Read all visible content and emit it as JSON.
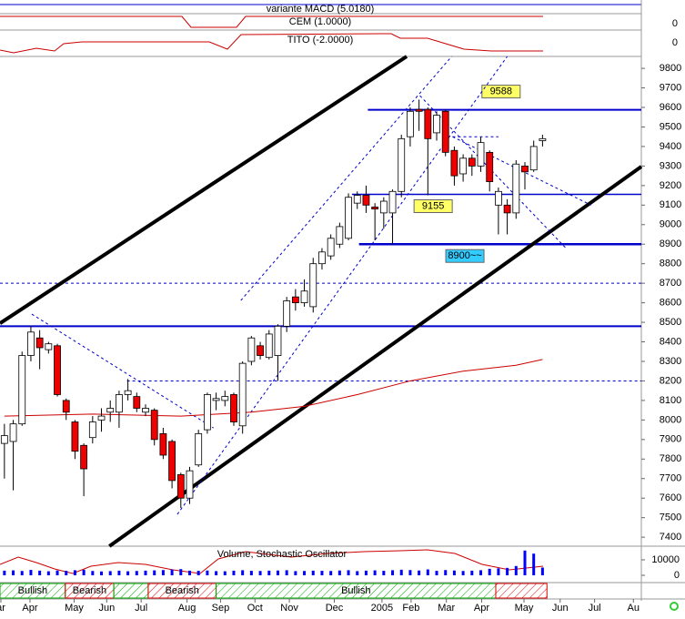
{
  "chart_data": {
    "type": "candlestick",
    "panels": [
      "variante MACD (5.0180)",
      "CEM (1.0000)",
      "TITO (-2.0000)"
    ],
    "panel_ticks": [
      "0",
      "0"
    ],
    "x": [
      0,
      1,
      2,
      3,
      4,
      5,
      6,
      7,
      8,
      9,
      10,
      11,
      12,
      13,
      14,
      15,
      16,
      17,
      18,
      19,
      20,
      21,
      22,
      23,
      24,
      25,
      26,
      27,
      28,
      29,
      30,
      31,
      32,
      33,
      34,
      35,
      36,
      37,
      38,
      39,
      40,
      41,
      42,
      43,
      44,
      45,
      46,
      47,
      48,
      49,
      50,
      51,
      52,
      53,
      54,
      55,
      56,
      57,
      58,
      59,
      60,
      61
    ],
    "open": [
      7880,
      7890,
      7980,
      8330,
      8420,
      8360,
      8380,
      8100,
      7990,
      7870,
      7910,
      8000,
      8040,
      8040,
      8130,
      8120,
      8040,
      8050,
      7930,
      7890,
      7720,
      7600,
      7770,
      7950,
      8100,
      8100,
      8130,
      7970,
      8300,
      8380,
      8320,
      8330,
      8480,
      8630,
      8600,
      8580,
      8800,
      8840,
      8900,
      8930,
      9110,
      9150,
      9090,
      9060,
      9060,
      9170,
      9450,
      9590,
      9590,
      9470,
      9580,
      9380,
      9260,
      9340,
      9300,
      9370,
      9100,
      9100,
      9060,
      9300,
      9280,
      9430
    ],
    "high": [
      7980,
      8000,
      8350,
      8480,
      8460,
      8400,
      8390,
      8110,
      8000,
      7880,
      8020,
      8060,
      8100,
      8150,
      8210,
      8140,
      8080,
      8060,
      7960,
      7900,
      7730,
      7760,
      7950,
      8140,
      8140,
      8150,
      8140,
      8300,
      8430,
      8400,
      8460,
      8490,
      8630,
      8670,
      8720,
      8830,
      8880,
      8950,
      9010,
      9160,
      9170,
      9200,
      9110,
      9140,
      9180,
      9460,
      9600,
      9640,
      9600,
      9580,
      9590,
      9400,
      9360,
      9360,
      9450,
      9380,
      9190,
      9130,
      9330,
      9320,
      9430,
      9460
    ],
    "low": [
      7700,
      7640,
      7970,
      8300,
      8260,
      8340,
      8120,
      8000,
      7800,
      7610,
      7880,
      7940,
      7990,
      7960,
      8100,
      8040,
      8020,
      7870,
      7800,
      7650,
      7550,
      7570,
      7760,
      7930,
      8050,
      8070,
      7970,
      7930,
      8280,
      8310,
      8310,
      8200,
      8450,
      8560,
      8580,
      8550,
      8770,
      8820,
      8880,
      8920,
      9080,
      9060,
      8920,
      8980,
      8900,
      9140,
      9400,
      9480,
      9150,
      9430,
      9350,
      9200,
      9220,
      9250,
      9270,
      9170,
      8950,
      8950,
      9030,
      9180,
      9270,
      9400
    ],
    "close": [
      7920,
      7980,
      8330,
      8450,
      8370,
      8390,
      8130,
      8040,
      7840,
      7750,
      7990,
      8020,
      8060,
      8130,
      8150,
      8060,
      8060,
      7900,
      7820,
      7690,
      7600,
      7740,
      7930,
      8130,
      8110,
      8120,
      7990,
      8290,
      8420,
      8330,
      8440,
      8480,
      8610,
      8600,
      8660,
      8800,
      8860,
      8930,
      8990,
      9140,
      9150,
      9100,
      9080,
      9120,
      9170,
      9440,
      9580,
      9580,
      9440,
      9560,
      9370,
      9250,
      9340,
      9300,
      9420,
      9220,
      9170,
      9060,
      9310,
      9270,
      9400,
      9440
    ],
    "volume": [
      3000,
      3200,
      2800,
      3500,
      3000,
      2600,
      3100,
      2900,
      3300,
      3600,
      2800,
      2500,
      2700,
      3000,
      2600,
      2800,
      3000,
      3200,
      3400,
      3800,
      4000,
      3000,
      2900,
      3100,
      2700,
      2600,
      3000,
      3300,
      2900,
      2800,
      3000,
      3100,
      3300,
      2700,
      2800,
      3000,
      2900,
      2800,
      3100,
      3300,
      2700,
      3000,
      3200,
      2900,
      3300,
      3600,
      3400,
      3100,
      3800,
      2900,
      3400,
      3100,
      2800,
      3000,
      3300,
      4200,
      4500,
      4800,
      6000,
      16000,
      14000,
      5000
    ],
    "moving_average": {
      "x": [
        0,
        10,
        20,
        28,
        34,
        40,
        46,
        52,
        58,
        61
      ],
      "values": [
        8020,
        8030,
        8020,
        8040,
        8070,
        8130,
        8200,
        8250,
        8280,
        8310
      ],
      "color": "#cc0000"
    },
    "levels": [
      {
        "value": 9588,
        "label": "9588",
        "from": 41.2,
        "color": "#0000cc",
        "width": 2,
        "dashed": false,
        "label_x": 56.3,
        "label_bg": "#ffff66"
      },
      {
        "value": 9155,
        "label": "9155",
        "from": 39.4,
        "color": "#0000cc",
        "width": 1.5,
        "dashed": false,
        "label_x": 48.6,
        "label_bg": "#ffff66"
      },
      {
        "value": 8900,
        "label": "8900~~",
        "from": 40.2,
        "color": "#0000cc",
        "width": 2.5,
        "dashed": false,
        "label_x": 52.2,
        "label_bg": "#33ccff"
      },
      {
        "value": 8480,
        "label": null,
        "from": -0.5,
        "color": "#0000cc",
        "width": 2,
        "dashed": false
      },
      {
        "value": 8700,
        "label": null,
        "from": -0.5,
        "color": "#0000cc",
        "width": 1,
        "dashed": true
      },
      {
        "value": 8200,
        "label": null,
        "from": 13.9,
        "color": "#0000cc",
        "width": 1,
        "dashed": true
      }
    ],
    "trendlines": [
      {
        "x": [
          -0.5,
          45.6
        ],
        "y": [
          8495,
          9861
        ],
        "color": "#000000",
        "width": 4,
        "dashed": false
      },
      {
        "x": [
          11.9,
          72.2
        ],
        "y": [
          7354,
          9297
        ],
        "color": "#000000",
        "width": 4,
        "dashed": false
      },
      {
        "x": [
          26.8,
          50.7
        ],
        "y": [
          8612,
          9861
        ],
        "color": "#0000cc",
        "width": 1,
        "dashed": true
      },
      {
        "x": [
          19.6,
          57.0
        ],
        "y": [
          7517,
          9861
        ],
        "color": "#0000cc",
        "width": 1,
        "dashed": true
      },
      {
        "x": [
          3.1,
          23.7
        ],
        "y": [
          8542,
          7959
        ],
        "color": "#0000cc",
        "width": 1,
        "dashed": true
      },
      {
        "x": [
          47.1,
          63.6
        ],
        "y": [
          9660,
          8882
        ],
        "color": "#0000cc",
        "width": 1,
        "dashed": true
      },
      {
        "x": [
          50.8,
          66.5
        ],
        "y": [
          9450,
          9100
        ],
        "color": "#0000cc",
        "width": 1,
        "dashed": true
      },
      {
        "x": [
          50.8,
          56.0
        ],
        "y": [
          9450,
          9450
        ],
        "color": "#0000cc",
        "width": 1,
        "dashed": true
      }
    ],
    "xlim": [
      -0.5,
      72.2
    ],
    "xticks": [
      {
        "value": -0.4,
        "label": "ar"
      },
      {
        "value": 2.9,
        "label": "Apr"
      },
      {
        "value": 7.9,
        "label": "May"
      },
      {
        "value": 11.6,
        "label": "Jun"
      },
      {
        "value": 15.5,
        "label": "Jul"
      },
      {
        "value": 20.7,
        "label": "Aug"
      },
      {
        "value": 24.5,
        "label": "Sep"
      },
      {
        "value": 28.4,
        "label": "Oct"
      },
      {
        "value": 32.3,
        "label": "Nov"
      },
      {
        "value": 37.4,
        "label": "Dec"
      },
      {
        "value": 42.8,
        "label": "2005"
      },
      {
        "value": 46.1,
        "label": "Feb"
      },
      {
        "value": 50.1,
        "label": "Mar"
      },
      {
        "value": 54.1,
        "label": "Apr"
      },
      {
        "value": 58.9,
        "label": "May"
      },
      {
        "value": 63.0,
        "label": "Jun"
      },
      {
        "value": 66.9,
        "label": "Jul"
      },
      {
        "value": 71.3,
        "label": "Au"
      }
    ],
    "ylim": [
      7354,
      9861
    ],
    "yticks": [
      7400,
      7500,
      7600,
      7700,
      7800,
      7900,
      8000,
      8100,
      8200,
      8300,
      8400,
      8500,
      8600,
      8700,
      8800,
      8900,
      9000,
      9100,
      9200,
      9300,
      9400,
      9500,
      9600,
      9700,
      9800
    ],
    "volume_title": "Volume, Stochastic Oscillator",
    "volume_ylim": [
      0,
      10000
    ],
    "volume_yticks": [
      10000,
      0
    ],
    "signals": [
      {
        "label": "Bullish",
        "from": -0.5,
        "to": 6.9,
        "kind": "bull"
      },
      {
        "label": "Bearish",
        "from": 6.9,
        "to": 12.4,
        "kind": "bear"
      },
      {
        "label": null,
        "from": 12.4,
        "to": 16.3,
        "kind": "bull"
      },
      {
        "label": "Bearish",
        "from": 16.3,
        "to": 24.0,
        "kind": "bear"
      },
      {
        "label": "Bullish",
        "from": 24.0,
        "to": 55.7,
        "kind": "bull"
      },
      {
        "label": null,
        "from": 55.7,
        "to": 61.5,
        "kind": "bear"
      }
    ],
    "colors": {
      "up": "#ffffff",
      "down": "#ee0000",
      "edge": "#000000",
      "volume": "#0000ff"
    }
  }
}
